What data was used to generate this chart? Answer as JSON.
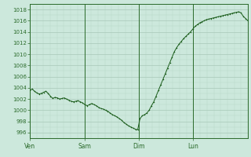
{
  "bg_color": "#cce8dc",
  "grid_color_major": "#a8c8b8",
  "grid_color_minor": "#b8d8c8",
  "line_color": "#1a5c1a",
  "marker_color": "#1a5c1a",
  "tick_label_color": "#2a6a2a",
  "axis_label_color": "#2a6a2a",
  "spine_color": "#2a6a2a",
  "ylim": [
    995,
    1019
  ],
  "yticks": [
    996,
    998,
    1000,
    1002,
    1004,
    1006,
    1008,
    1010,
    1012,
    1014,
    1016,
    1018
  ],
  "day_labels": [
    "Ven",
    "Sam",
    "Dim",
    "Lun"
  ],
  "day_positions": [
    0,
    24,
    48,
    72
  ],
  "total_hours": 96,
  "pressure_data": [
    1003.5,
    1003.8,
    1003.4,
    1003.1,
    1002.9,
    1003.0,
    1003.2,
    1003.4,
    1003.0,
    1002.5,
    1002.1,
    1002.3,
    1002.2,
    1002.0,
    1002.1,
    1002.2,
    1002.0,
    1001.8,
    1001.6,
    1001.5,
    1001.6,
    1001.7,
    1001.5,
    1001.3,
    1001.0,
    1000.8,
    1001.0,
    1001.2,
    1001.0,
    1000.8,
    1000.5,
    1000.3,
    1000.2,
    1000.0,
    999.8,
    999.5,
    999.2,
    999.0,
    998.8,
    998.5,
    998.2,
    997.8,
    997.5,
    997.2,
    997.0,
    996.8,
    996.6,
    996.5,
    998.5,
    999.0,
    999.2,
    999.5,
    1000.0,
    1000.8,
    1001.5,
    1002.5,
    1003.5,
    1004.5,
    1005.5,
    1006.5,
    1007.5,
    1008.5,
    1009.5,
    1010.5,
    1011.2,
    1011.8,
    1012.3,
    1012.8,
    1013.2,
    1013.6,
    1014.0,
    1014.5,
    1015.0,
    1015.3,
    1015.6,
    1015.8,
    1016.0,
    1016.2,
    1016.3,
    1016.4,
    1016.5,
    1016.6,
    1016.7,
    1016.8,
    1016.9,
    1017.0,
    1017.1,
    1017.2,
    1017.3,
    1017.4,
    1017.5,
    1017.6,
    1017.4,
    1016.8,
    1016.4,
    1016.0
  ]
}
